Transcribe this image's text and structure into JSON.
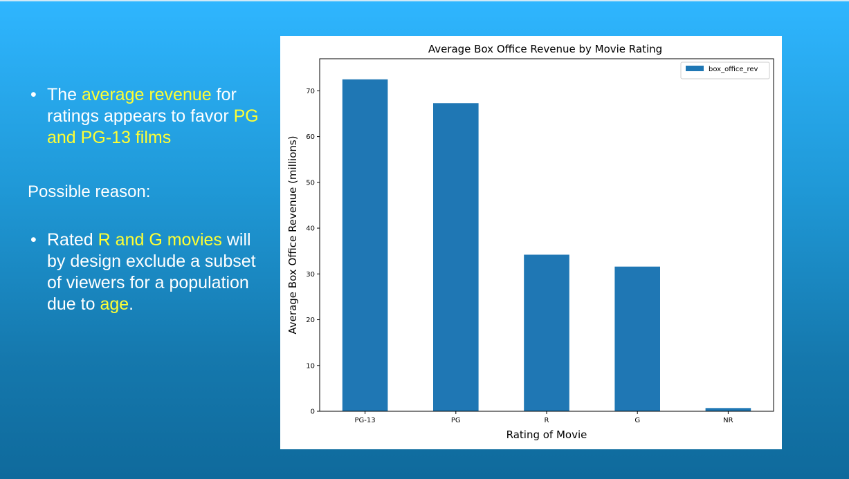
{
  "slide": {
    "bullet1": {
      "dot": "•",
      "pre": "The ",
      "hl1": "average revenue",
      "mid": " for ratings appears to favor ",
      "hl2": "PG and PG-13 films"
    },
    "reason_label": "Possible reason:",
    "bullet2": {
      "dot": "•",
      "pre": "Rated ",
      "hl1": "R and G movies",
      "mid": " will by design exclude a subset of viewers for a population due to ",
      "hl2": "age",
      "post": "."
    },
    "highlight_color": "#ffff33"
  },
  "chart_data": {
    "type": "bar",
    "title": "Average Box Office Revenue by Movie Rating",
    "xlabel": "Rating of Movie",
    "ylabel": "Average Box Office Revenue (millions)",
    "categories": [
      "PG-13",
      "PG",
      "R",
      "G",
      "NR"
    ],
    "series": [
      {
        "name": "box_office_rev",
        "values": [
          72.5,
          67.3,
          34.2,
          31.6,
          0.7
        ],
        "color": "#1f77b4"
      }
    ],
    "ylim": [
      0,
      77
    ],
    "yticks": [
      0,
      10,
      20,
      30,
      40,
      50,
      60,
      70
    ],
    "legend": "top-right",
    "grid": false
  }
}
